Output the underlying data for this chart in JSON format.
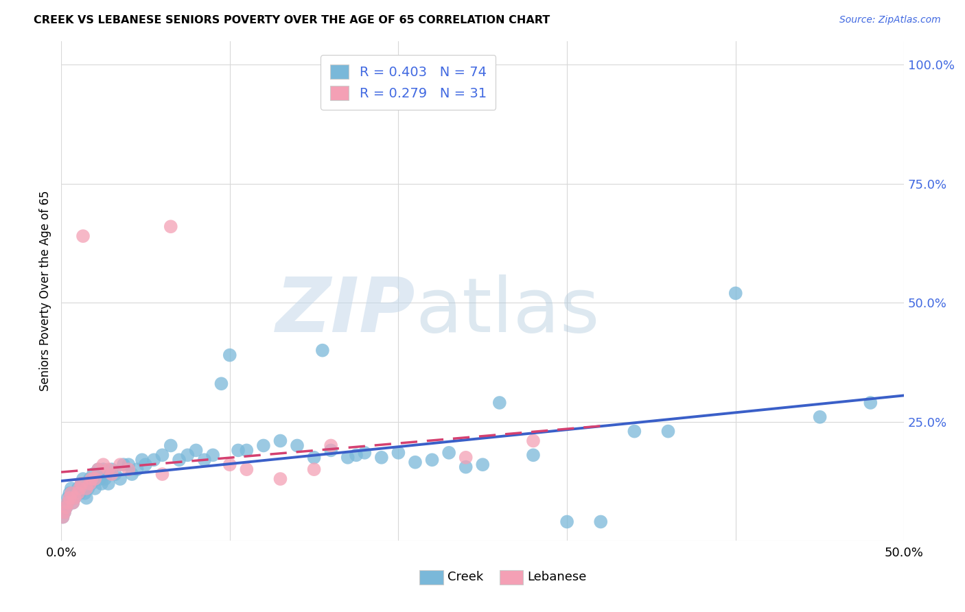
{
  "title": "CREEK VS LEBANESE SENIORS POVERTY OVER THE AGE OF 65 CORRELATION CHART",
  "source": "Source: ZipAtlas.com",
  "ylabel": "Seniors Poverty Over the Age of 65",
  "xlim": [
    0.0,
    0.5
  ],
  "ylim": [
    0.0,
    1.05
  ],
  "creek_color": "#7ab8d9",
  "lebanese_color": "#f4a0b5",
  "creek_line_color": "#3a5fc8",
  "lebanese_line_color": "#d44070",
  "creek_R": 0.403,
  "creek_N": 74,
  "lebanese_R": 0.279,
  "lebanese_N": 31,
  "background_color": "#ffffff",
  "grid_color": "#d8d8d8",
  "creek_x": [
    0.001,
    0.002,
    0.003,
    0.004,
    0.004,
    0.005,
    0.006,
    0.007,
    0.008,
    0.009,
    0.01,
    0.011,
    0.012,
    0.013,
    0.014,
    0.015,
    0.016,
    0.017,
    0.018,
    0.019,
    0.02,
    0.022,
    0.023,
    0.024,
    0.025,
    0.026,
    0.027,
    0.028,
    0.03,
    0.032,
    0.035,
    0.037,
    0.04,
    0.042,
    0.045,
    0.048,
    0.05,
    0.055,
    0.06,
    0.065,
    0.07,
    0.075,
    0.08,
    0.085,
    0.09,
    0.095,
    0.1,
    0.105,
    0.11,
    0.12,
    0.13,
    0.14,
    0.15,
    0.155,
    0.16,
    0.17,
    0.175,
    0.18,
    0.19,
    0.2,
    0.21,
    0.22,
    0.23,
    0.24,
    0.25,
    0.26,
    0.28,
    0.3,
    0.32,
    0.34,
    0.36,
    0.4,
    0.45,
    0.48
  ],
  "creek_y": [
    0.05,
    0.06,
    0.07,
    0.08,
    0.09,
    0.1,
    0.11,
    0.08,
    0.09,
    0.1,
    0.11,
    0.1,
    0.12,
    0.13,
    0.1,
    0.09,
    0.11,
    0.13,
    0.12,
    0.14,
    0.11,
    0.15,
    0.13,
    0.12,
    0.15,
    0.13,
    0.14,
    0.12,
    0.15,
    0.14,
    0.13,
    0.16,
    0.16,
    0.14,
    0.15,
    0.17,
    0.16,
    0.17,
    0.18,
    0.2,
    0.17,
    0.18,
    0.19,
    0.17,
    0.18,
    0.33,
    0.39,
    0.19,
    0.19,
    0.2,
    0.21,
    0.2,
    0.175,
    0.4,
    0.19,
    0.175,
    0.18,
    0.185,
    0.175,
    0.185,
    0.165,
    0.17,
    0.185,
    0.155,
    0.16,
    0.29,
    0.18,
    0.04,
    0.04,
    0.23,
    0.23,
    0.52,
    0.26,
    0.29
  ],
  "lebanese_x": [
    0.001,
    0.002,
    0.003,
    0.004,
    0.005,
    0.006,
    0.007,
    0.008,
    0.01,
    0.011,
    0.012,
    0.013,
    0.015,
    0.017,
    0.018,
    0.02,
    0.022,
    0.025,
    0.028,
    0.03,
    0.035,
    0.04,
    0.06,
    0.065,
    0.1,
    0.11,
    0.13,
    0.15,
    0.16,
    0.24,
    0.28
  ],
  "lebanese_y": [
    0.05,
    0.06,
    0.07,
    0.08,
    0.09,
    0.1,
    0.08,
    0.09,
    0.1,
    0.11,
    0.12,
    0.64,
    0.11,
    0.12,
    0.13,
    0.13,
    0.15,
    0.16,
    0.15,
    0.14,
    0.16,
    0.15,
    0.14,
    0.66,
    0.16,
    0.15,
    0.13,
    0.15,
    0.2,
    0.175,
    0.21
  ]
}
